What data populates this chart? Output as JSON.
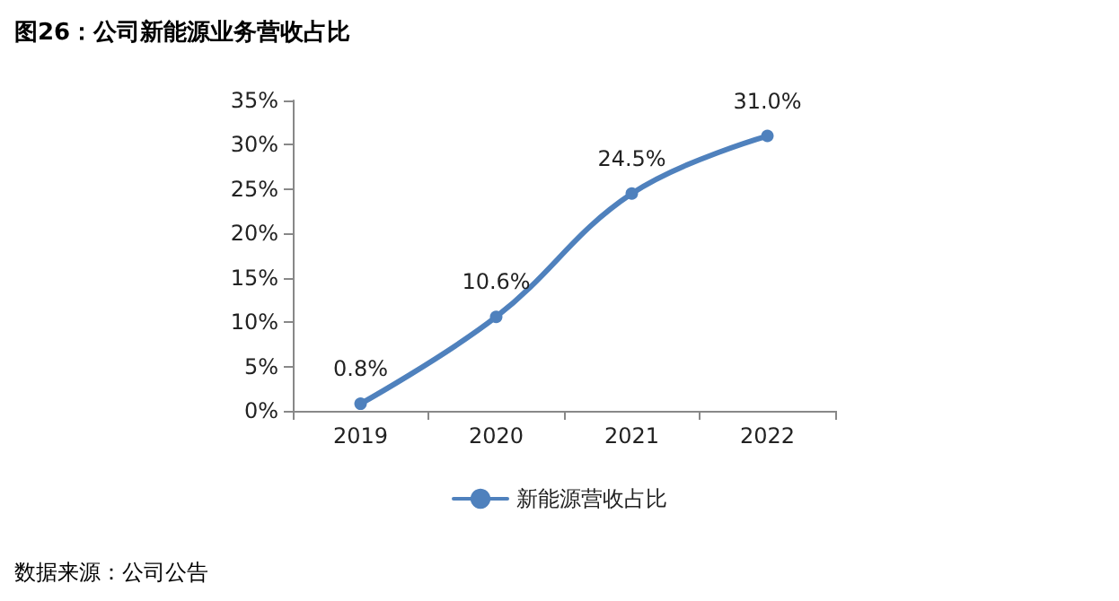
{
  "chart_data": {
    "type": "line",
    "title": "图26：公司新能源业务营收占比",
    "categories": [
      "2019",
      "2020",
      "2021",
      "2022"
    ],
    "series": [
      {
        "name": "新能源营收占比",
        "color": "#4f81bd",
        "values": [
          0.8,
          10.6,
          24.5,
          31.0
        ],
        "value_labels": [
          "0.8%",
          "10.6%",
          "24.5%",
          "31.0%"
        ]
      }
    ],
    "ylim": [
      0,
      35
    ],
    "yticks": [
      {
        "value": 0,
        "label": "0%"
      },
      {
        "value": 5,
        "label": "5%"
      },
      {
        "value": 10,
        "label": "10%"
      },
      {
        "value": 15,
        "label": "15%"
      },
      {
        "value": 20,
        "label": "20%"
      },
      {
        "value": 25,
        "label": "25%"
      },
      {
        "value": 30,
        "label": "30%"
      },
      {
        "value": 35,
        "label": "35%"
      }
    ],
    "legend": "bottom",
    "marker": "circle",
    "line_style": "solid",
    "grid": false,
    "annotations": [
      "数据来源：公司公告"
    ]
  }
}
